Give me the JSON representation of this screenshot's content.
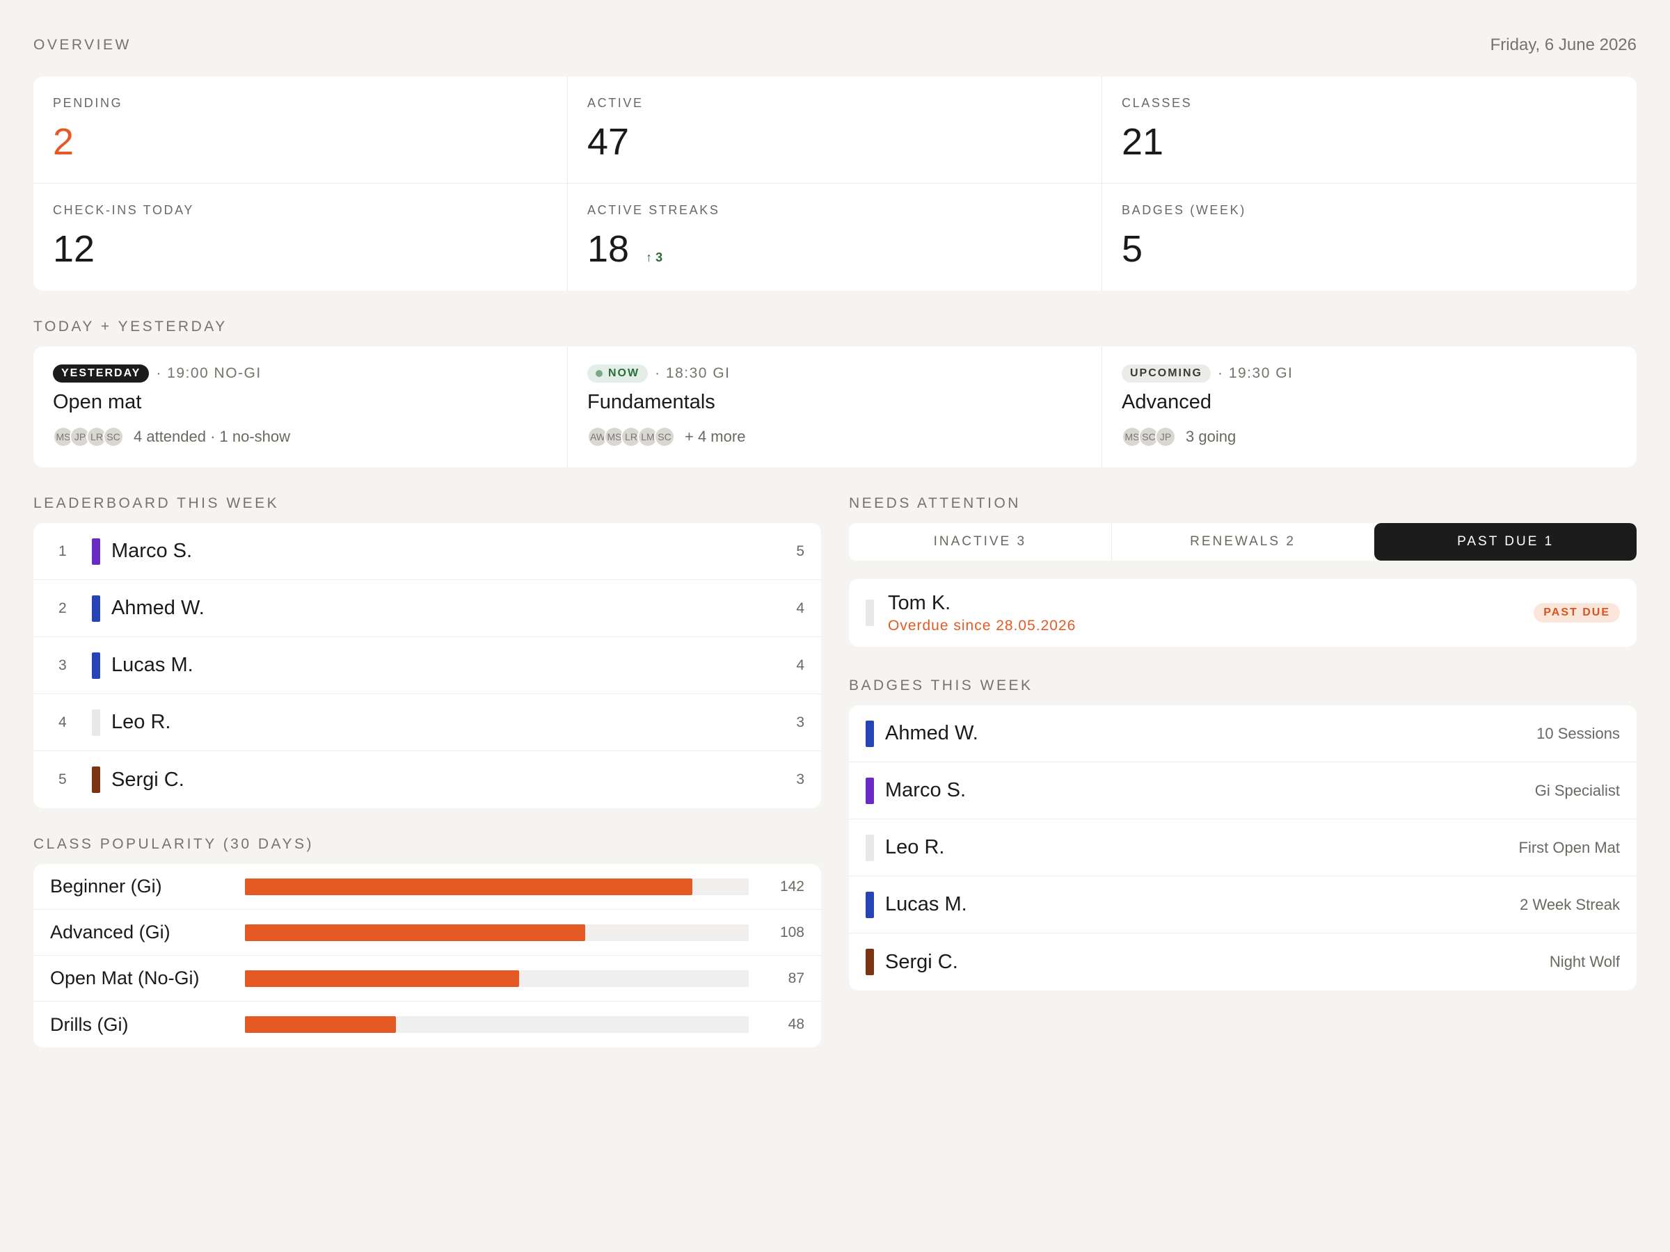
{
  "header": {
    "section": "OVERVIEW",
    "date": "Friday, 6 June 2026"
  },
  "stats": [
    {
      "label": "PENDING",
      "value": "2",
      "accent": true
    },
    {
      "label": "ACTIVE",
      "value": "47"
    },
    {
      "label": "CLASSES",
      "value": "21"
    },
    {
      "label": "CHECK-INS TODAY",
      "value": "12"
    },
    {
      "label": "ACTIVE STREAKS",
      "value": "18",
      "delta": "↑ 3"
    },
    {
      "label": "BADGES (WEEK)",
      "value": "5"
    }
  ],
  "sessions": {
    "label": "TODAY + YESTERDAY",
    "items": [
      {
        "pill": "YESTERDAY",
        "time": "· 19:00 NO-GI",
        "title": "Open mat",
        "avatars": [
          "MS",
          "JP",
          "LR",
          "SC"
        ],
        "summary": "4 attended · 1 no-show"
      },
      {
        "pill": "NOW",
        "time": "· 18:30 GI",
        "title": "Fundamentals",
        "avatars": [
          "AW",
          "MS",
          "LR",
          "LM",
          "SC"
        ],
        "summary": "+ 4 more"
      },
      {
        "pill": "UPCOMING",
        "time": "· 19:30 GI",
        "title": "Advanced",
        "avatars": [
          "MS",
          "SC",
          "JP"
        ],
        "summary": "3 going"
      }
    ]
  },
  "leaderboard": {
    "label": "LEADERBOARD THIS WEEK",
    "rows": [
      {
        "rank": "1",
        "name": "Marco S.",
        "score": "5",
        "color": "#6a2bc4"
      },
      {
        "rank": "2",
        "name": "Ahmed W.",
        "score": "4",
        "color": "#2644b3"
      },
      {
        "rank": "3",
        "name": "Lucas M.",
        "score": "4",
        "color": "#2644b3"
      },
      {
        "rank": "4",
        "name": "Leo R.",
        "score": "3",
        "color": "#e8e8e6"
      },
      {
        "rank": "5",
        "name": "Sergi C.",
        "score": "3",
        "color": "#7b3412"
      }
    ]
  },
  "popularity": {
    "label": "CLASS POPULARITY (30 DAYS)",
    "max": 160,
    "rows": [
      {
        "name": "Beginner (Gi)",
        "value": 142,
        "label": "142"
      },
      {
        "name": "Advanced (Gi)",
        "value": 108,
        "label": "108"
      },
      {
        "name": "Open Mat (No-Gi)",
        "value": 87,
        "label": "87"
      },
      {
        "name": "Drills (Gi)",
        "value": 48,
        "label": "48"
      }
    ]
  },
  "attention": {
    "label": "NEEDS ATTENTION",
    "tabs": [
      "INACTIVE 3",
      "RENEWALS 2",
      "PAST DUE 1"
    ],
    "active_tab": 2,
    "item": {
      "name": "Tom K.",
      "sub": "Overdue since 28.05.2026",
      "badge": "PAST DUE",
      "color": "#e8e8e6"
    }
  },
  "badges": {
    "label": "BADGES THIS WEEK",
    "rows": [
      {
        "name": "Ahmed W.",
        "badge": "10 Sessions",
        "color": "#2644b3"
      },
      {
        "name": "Marco S.",
        "badge": "Gi Specialist",
        "color": "#6a2bc4"
      },
      {
        "name": "Leo R.",
        "badge": "First Open Mat",
        "color": "#e8e8e6"
      },
      {
        "name": "Lucas M.",
        "badge": "2 Week Streak",
        "color": "#2644b3"
      },
      {
        "name": "Sergi C.",
        "badge": "Night Wolf",
        "color": "#7b3412"
      }
    ]
  }
}
